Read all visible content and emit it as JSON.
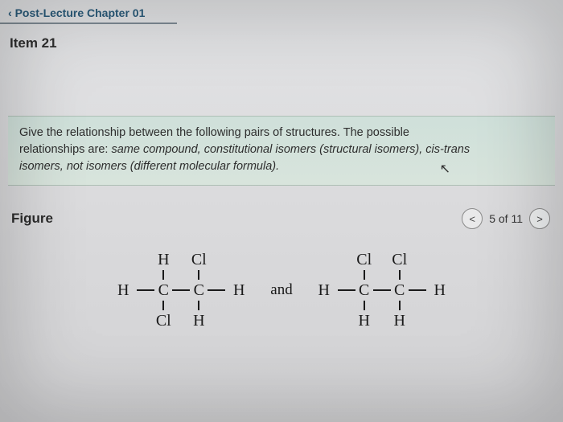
{
  "header": {
    "breadcrumb": "Post-Lecture Chapter 01",
    "item_title": "Item 21"
  },
  "prompt": {
    "line1": "Give the relationship between the following pairs of structures. The possible",
    "line2_prefix": "relationships are: ",
    "line2_italic": "same compound, constitutional isomers (structural isomers), cis-trans",
    "line3_italic": "isomers, not isomers (different molecular formula)."
  },
  "figure": {
    "label": "Figure",
    "pager_text": "5 of 11",
    "prev_glyph": "<",
    "next_glyph": ">",
    "and_word": "and",
    "molecule_left": {
      "top": [
        "H",
        "Cl"
      ],
      "middle": [
        "H",
        "C",
        "C",
        "H"
      ],
      "bottom": [
        "Cl",
        "H"
      ]
    },
    "molecule_right": {
      "top": [
        "Cl",
        "Cl"
      ],
      "middle": [
        "H",
        "C",
        "C",
        "H"
      ],
      "bottom": [
        "H",
        "H"
      ]
    }
  },
  "colors": {
    "crumb_text": "#2a5b7a",
    "band_bg_top": "#cfe0da",
    "band_bg_bottom": "#d8e4dc",
    "page_bg": "#d4d4d6",
    "text": "#2e2e2e",
    "bond": "#1a1a1a"
  }
}
